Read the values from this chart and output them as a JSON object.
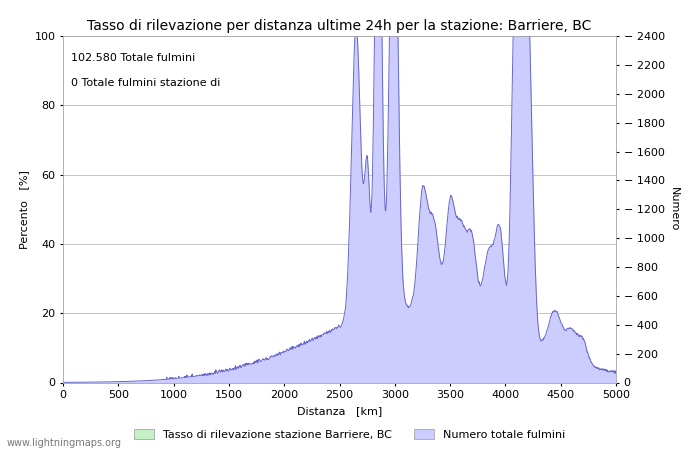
{
  "title": "Tasso di rilevazione per distanza ultime 24h per la stazione: Barriere, BC",
  "xlabel": "Distanza   [km]",
  "ylabel_left": "Percento   [%]",
  "ylabel_right": "Numero",
  "annotation_line1": "102.580 Totale fulmini",
  "annotation_line2": "0 Totale fulmini stazione di",
  "watermark": "www.lightningmaps.org",
  "legend_label1": "Tasso di rilevazione stazione Barriere, BC",
  "legend_label2": "Numero totale fulmini",
  "xlim": [
    0,
    5000
  ],
  "ylim_left": [
    0,
    100
  ],
  "ylim_right": [
    0,
    2400
  ],
  "xticks": [
    0,
    500,
    1000,
    1500,
    2000,
    2500,
    3000,
    3500,
    4000,
    4500,
    5000
  ],
  "yticks_left": [
    0,
    20,
    40,
    60,
    80,
    100
  ],
  "yticks_right": [
    0,
    200,
    400,
    600,
    800,
    1000,
    1200,
    1400,
    1600,
    1800,
    2000,
    2200,
    2400
  ],
  "fill_color_green": "#c8f0c8",
  "fill_color_blue": "#ccccff",
  "line_color": "#6666cc",
  "background_color": "#ffffff",
  "grid_color": "#bbbbbb",
  "title_fontsize": 10,
  "axis_fontsize": 8,
  "tick_fontsize": 8,
  "figsize": [
    7.0,
    4.5
  ],
  "dpi": 100
}
